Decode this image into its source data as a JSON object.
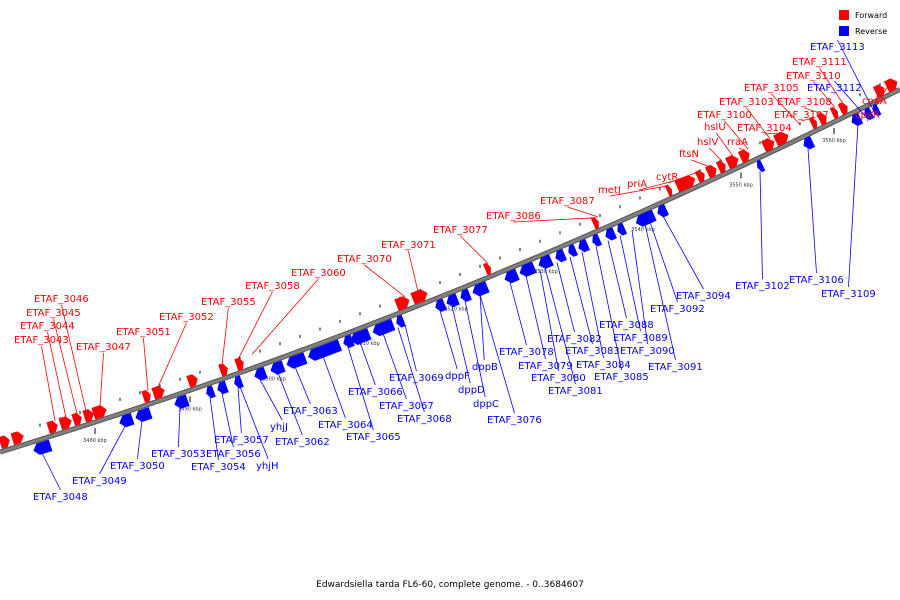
{
  "caption": "Edwardsiella tarda FL6-60, complete genome. - 0..3684607",
  "legend": {
    "items": [
      {
        "label": "Forward",
        "color": "#ff0000"
      },
      {
        "label": "Reverse",
        "color": "#0000ff"
      }
    ]
  },
  "colors": {
    "forward": "#ff0000",
    "reverse": "#0000ff",
    "backbone": "#808080"
  },
  "tick_labels": [
    "3480 kbp",
    "3490 kbp",
    "3500 kbp",
    "3510 kbp",
    "3520 kbp",
    "3530 kbp",
    "3540 kbp",
    "3550 kbp",
    "3560 kbp"
  ],
  "forward_labels": [
    "ETAF_3043",
    "ETAF_3044",
    "ETAF_3045",
    "ETAF_3046",
    "ETAF_3047",
    "ETAF_3051",
    "ETAF_3052",
    "ETAF_3055",
    "ETAF_3058",
    "ETAF_3060",
    "ETAF_3070",
    "ETAF_3071",
    "ETAF_3077",
    "ETAF_3086",
    "ETAF_3087",
    "metJ",
    "priA",
    "cytR",
    "ftsN",
    "hslV",
    "hslU",
    "rraA",
    "ETAF_3100",
    "ETAF_3103",
    "ETAF_3104",
    "ETAF_3105",
    "ETAF_3107",
    "ETAF_3108",
    "ETAF_3110",
    "ETAF_3111",
    "cpxA",
    "cpxR"
  ],
  "reverse_labels": [
    "ETAF_3048",
    "ETAF_3049",
    "ETAF_3050",
    "ETAF_3053",
    "ETAF_3054",
    "ETAF_3056",
    "ETAF_3057",
    "yhjH",
    "yhjJ",
    "ETAF_3062",
    "ETAF_3063",
    "ETAF_3064",
    "ETAF_3065",
    "ETAF_3066",
    "ETAF_3067",
    "ETAF_3068",
    "ETAF_3069",
    "dppF",
    "dppD",
    "dppC",
    "dppB",
    "ETAF_3076",
    "ETAF_3078",
    "ETAF_3079",
    "ETAF_3080",
    "ETAF_3081",
    "ETAF_3082",
    "ETAF_3083",
    "ETAF_3084",
    "ETAF_3085",
    "ETAF_3088",
    "ETAF_3089",
    "ETAF_3090",
    "ETAF_3091",
    "ETAF_3092",
    "ETAF_3094",
    "ETAF_3102",
    "ETAF_3106",
    "ETAF_3109",
    "ETAF_3112",
    "ETAF_3113"
  ]
}
